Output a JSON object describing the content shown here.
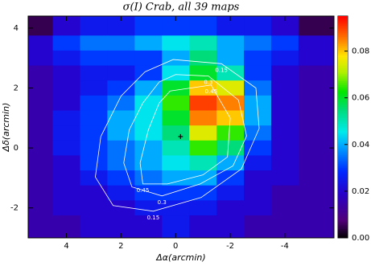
{
  "chart_data": {
    "type": "heatmap",
    "title": "σ(I) Crab, all 39 maps",
    "xlabel": "Δα(arcmin)",
    "ylabel": "Δδ(arcmin)",
    "xlim": [
      5.4,
      -5.8
    ],
    "ylim": [
      -3.0,
      4.4
    ],
    "xticks": [
      4,
      2,
      0,
      -2,
      -4
    ],
    "yticks": [
      -2,
      0,
      2,
      4
    ],
    "x": [
      5,
      4,
      3,
      2,
      1,
      0,
      -1,
      -2,
      -3,
      -4,
      -5
    ],
    "y": [
      4.0,
      3.5,
      3.0,
      2.5,
      2.0,
      1.5,
      1.0,
      0.5,
      0,
      -0.5,
      -1.0,
      -1.5,
      -2.0,
      -2.5
    ],
    "z": [
      [
        0.005,
        0.02,
        0.025,
        0.025,
        0.03,
        0.03,
        0.03,
        0.025,
        0.025,
        0.02,
        0.005
      ],
      [
        0.02,
        0.03,
        0.035,
        0.035,
        0.04,
        0.045,
        0.05,
        0.04,
        0.035,
        0.03,
        0.02
      ],
      [
        0.02,
        0.025,
        0.03,
        0.03,
        0.03,
        0.04,
        0.055,
        0.04,
        0.03,
        0.025,
        0.02
      ],
      [
        0.015,
        0.02,
        0.025,
        0.025,
        0.03,
        0.045,
        0.06,
        0.05,
        0.03,
        0.02,
        0.015
      ],
      [
        0.015,
        0.02,
        0.025,
        0.03,
        0.04,
        0.06,
        0.08,
        0.075,
        0.035,
        0.02,
        0.015
      ],
      [
        0.015,
        0.02,
        0.03,
        0.035,
        0.045,
        0.065,
        0.09,
        0.085,
        0.04,
        0.02,
        0.015
      ],
      [
        0.015,
        0.025,
        0.03,
        0.04,
        0.045,
        0.06,
        0.085,
        0.08,
        0.04,
        0.02,
        0.015
      ],
      [
        0.015,
        0.025,
        0.03,
        0.04,
        0.045,
        0.055,
        0.075,
        0.065,
        0.035,
        0.02,
        0.015
      ],
      [
        0.015,
        0.025,
        0.03,
        0.035,
        0.04,
        0.05,
        0.065,
        0.055,
        0.03,
        0.02,
        0.015
      ],
      [
        0.015,
        0.02,
        0.03,
        0.035,
        0.04,
        0.045,
        0.05,
        0.04,
        0.025,
        0.02,
        0.015
      ],
      [
        0.015,
        0.02,
        0.025,
        0.03,
        0.035,
        0.04,
        0.04,
        0.03,
        0.02,
        0.02,
        0.015
      ],
      [
        0.015,
        0.02,
        0.02,
        0.025,
        0.03,
        0.03,
        0.03,
        0.025,
        0.02,
        0.015,
        0.015
      ],
      [
        0.015,
        0.02,
        0.02,
        0.02,
        0.025,
        0.025,
        0.025,
        0.02,
        0.02,
        0.015,
        0.015
      ],
      [
        0.015,
        0.015,
        0.02,
        0.02,
        0.02,
        0.025,
        0.02,
        0.02,
        0.015,
        0.015,
        0.015
      ]
    ],
    "clim": [
      0,
      0.095
    ],
    "cticks": [
      {
        "value": 0,
        "label": "0.00"
      },
      {
        "value": 0.02,
        "label": "0.02"
      },
      {
        "value": 0.04,
        "label": "0.04"
      },
      {
        "value": 0.06,
        "label": "0.06"
      },
      {
        "value": 0.08,
        "label": "0.08"
      }
    ],
    "contours": [
      {
        "level": 0.15,
        "x": [
          0.09,
          -1.68,
          -2.94,
          -3.06,
          -2.41,
          -0.94,
          0.82,
          2.29,
          2.94,
          2.74,
          2.0,
          1.12
        ],
        "y": [
          2.95,
          2.81,
          2.0,
          0.65,
          -0.7,
          -1.65,
          -2.11,
          -1.92,
          -0.97,
          0.38,
          1.73,
          2.54
        ]
      },
      {
        "level": 0.3,
        "x": [
          0.0,
          -1.2,
          -2.3,
          -2.6,
          -2.1,
          -0.9,
          0.5,
          1.6,
          1.9,
          1.7,
          1.2,
          0.6
        ],
        "y": [
          2.45,
          2.4,
          1.6,
          0.4,
          -0.6,
          -1.2,
          -1.6,
          -1.3,
          -0.5,
          0.6,
          1.5,
          2.2
        ]
      },
      {
        "level": 0.45,
        "x": [
          0.2,
          -1.3,
          -2.0,
          -1.9,
          -1.0,
          0.3,
          1.2,
          1.3,
          1.0,
          0.6
        ],
        "y": [
          1.9,
          2.1,
          1.0,
          -0.3,
          -0.9,
          -1.2,
          -1.2,
          -0.5,
          0.6,
          1.5
        ]
      }
    ],
    "marker": [
      -0.18,
      0.38
    ]
  }
}
